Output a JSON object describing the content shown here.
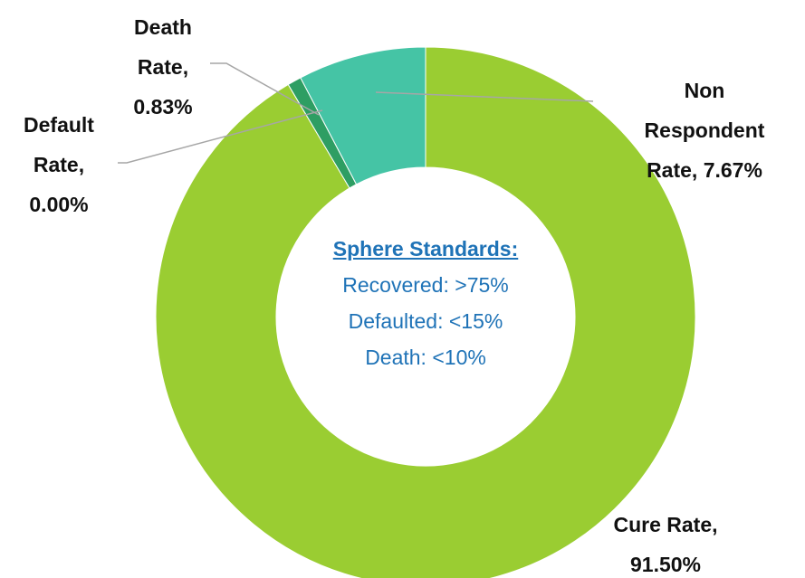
{
  "chart_data": {
    "type": "donut",
    "categories": [
      "Cure Rate,",
      "Default Rate,",
      "Death Rate,",
      "Non Respondent Rate,"
    ],
    "values": [
      91.5,
      0.0,
      0.83,
      7.67
    ],
    "value_labels": [
      "91.50%",
      "0.00%",
      "0.83%",
      "7.67%"
    ],
    "colors": [
      "#9acd32",
      "#2a9d5c",
      "#2e9e63",
      "#45c4a5"
    ],
    "annotation": {
      "title": "Sphere Standards:",
      "lines": [
        "Recovered: >75%",
        "Defaulted: <15%",
        "Death: <10%"
      ]
    }
  }
}
